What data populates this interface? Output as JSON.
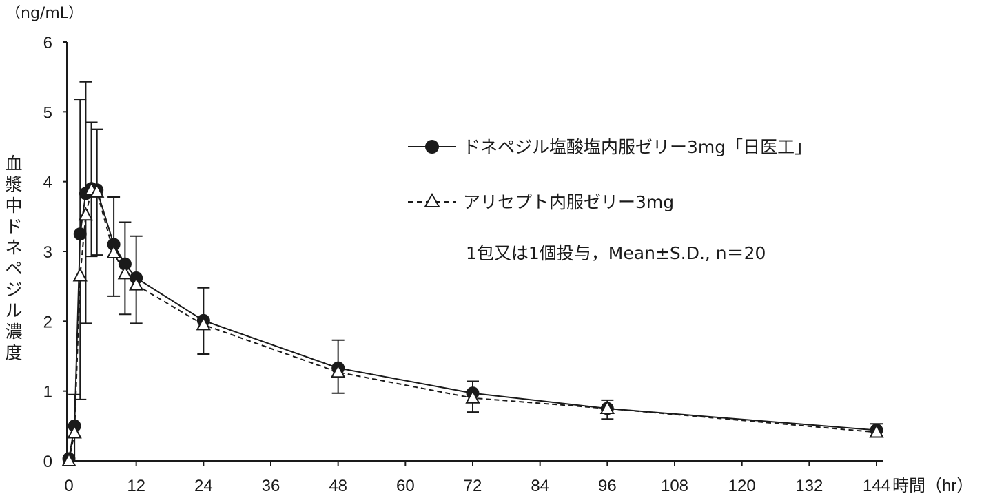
{
  "chart_data": {
    "type": "line",
    "y_unit": "（ng/mL）",
    "ylabel": "血漿中ドネペジル濃度",
    "x_unit": "時間（hr）",
    "ylim": [
      0,
      6
    ],
    "xlim": [
      0,
      144
    ],
    "y_ticks": [
      "0",
      "1",
      "2",
      "3",
      "4",
      "5",
      "6"
    ],
    "x_ticks": [
      "0",
      "12",
      "24",
      "36",
      "48",
      "60",
      "72",
      "84",
      "96",
      "108",
      "120",
      "132",
      "144"
    ],
    "annotation": "1包又は1個投与，Mean±S.D., n＝20",
    "series": [
      {
        "name": "ドネペジル塩酸塩内服ゼリー3mg「日医工」",
        "marker": "filled-circle",
        "line": "solid",
        "color": "#1a1a1a",
        "points": [
          {
            "x": 0,
            "y": 0.03,
            "sd": 0
          },
          {
            "x": 1,
            "y": 0.5,
            "sd": 0.45
          },
          {
            "x": 2,
            "y": 3.25,
            "sd": 1.93
          },
          {
            "x": 3,
            "y": 3.83,
            "sd": 1.6
          },
          {
            "x": 4,
            "y": 3.9,
            "sd": 0.95
          },
          {
            "x": 5,
            "y": 3.88,
            "sd": 0.87
          },
          {
            "x": 8,
            "y": 3.1,
            "sd": 0.68
          },
          {
            "x": 10,
            "y": 2.82,
            "sd": 0.6
          },
          {
            "x": 12,
            "y": 2.62,
            "sd": 0.6
          },
          {
            "x": 24,
            "y": 2.01,
            "sd": 0.47
          },
          {
            "x": 48,
            "y": 1.33,
            "sd": 0.4
          },
          {
            "x": 72,
            "y": 0.97,
            "sd": 0.17
          },
          {
            "x": 96,
            "y": 0.75,
            "sd": 0.12
          },
          {
            "x": 144,
            "y": 0.44,
            "sd": 0.09
          }
        ]
      },
      {
        "name": "アリセプト内服ゼリー3mg",
        "marker": "open-triangle",
        "line": "dashed",
        "color": "#1a1a1a",
        "points": [
          {
            "x": 0,
            "y": 0.0,
            "sd": 0
          },
          {
            "x": 1,
            "y": 0.4,
            "sd": 0.5
          },
          {
            "x": 2,
            "y": 2.65,
            "sd": 1.77
          },
          {
            "x": 3,
            "y": 3.52,
            "sd": 1.55
          },
          {
            "x": 4,
            "y": 3.88,
            "sd": 0.95
          },
          {
            "x": 5,
            "y": 3.85,
            "sd": 0.9
          },
          {
            "x": 8,
            "y": 2.98,
            "sd": 0.62
          },
          {
            "x": 10,
            "y": 2.68,
            "sd": 0.58
          },
          {
            "x": 12,
            "y": 2.52,
            "sd": 0.55
          },
          {
            "x": 24,
            "y": 1.95,
            "sd": 0.42
          },
          {
            "x": 48,
            "y": 1.27,
            "sd": 0.3
          },
          {
            "x": 72,
            "y": 0.9,
            "sd": 0.2
          },
          {
            "x": 96,
            "y": 0.75,
            "sd": 0.15
          },
          {
            "x": 144,
            "y": 0.41,
            "sd": 0.07
          }
        ]
      }
    ]
  }
}
